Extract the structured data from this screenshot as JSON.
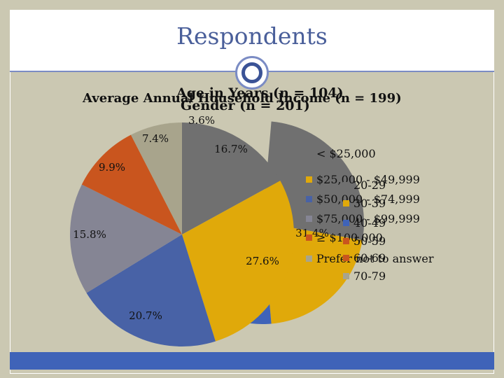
{
  "slide": {
    "title": "Respondents",
    "overlay_titles": [
      "Age in Years (n = 104)",
      "Average Annual Household Income (n = 199)",
      "Gender (n = 201)"
    ],
    "colors": {
      "background": "#cbc8b2",
      "title_text": "#4a5f9a",
      "footer": "#3f63b8"
    }
  },
  "chart_data": [
    {
      "type": "pie",
      "title": "Average Annual Household Income (n = 199)",
      "categories": [
        "< $25,000",
        "$25,000 - $49,999",
        "$50,000 - $74,999",
        "$75,000 - $99,999",
        "≥ $100,000",
        "Prefer not to answer"
      ],
      "values": [
        16.7,
        27.6,
        20.7,
        15.8,
        9.9,
        7.4
      ],
      "unit": "%",
      "labels": [
        "16.7%",
        "27.6%",
        "20.7%",
        "15.8%",
        "9.9%",
        "7.4%"
      ],
      "colors": [
        "#707070",
        "#e0a90a",
        "#4862a6",
        "#858594",
        "#c9551e",
        "#a8a48c"
      ],
      "legend": "right"
    },
    {
      "type": "pie",
      "title": "Age in Years (n = 104)",
      "categories": [
        "20-29",
        "30-39",
        "40-49",
        "50-59",
        "60-69",
        "70-79"
      ],
      "labels": [
        "31.4%",
        "3.6%"
      ],
      "legend": "right"
    }
  ]
}
